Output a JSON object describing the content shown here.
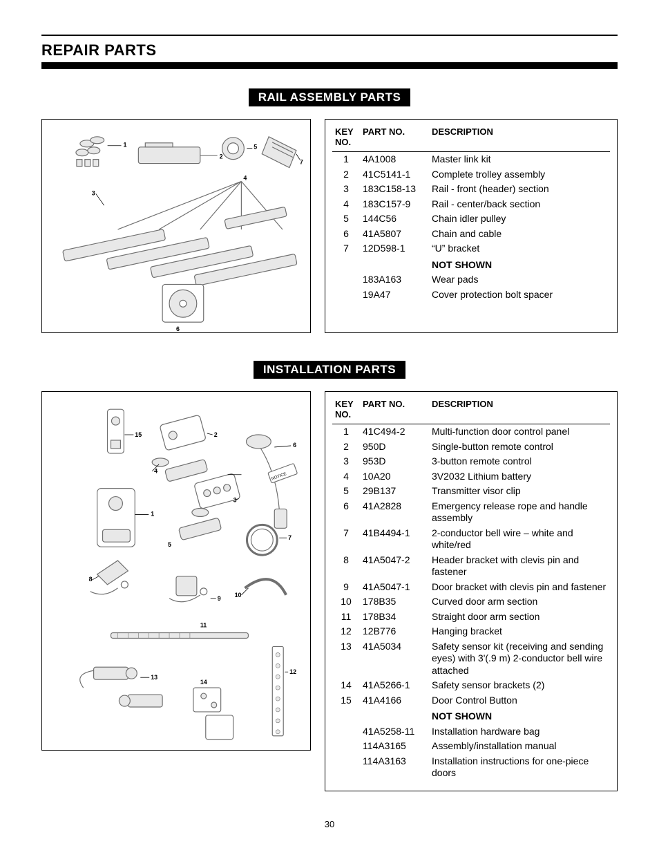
{
  "page_title": "REPAIR PARTS",
  "page_number": "30",
  "colors": {
    "text": "#000000",
    "bg": "#ffffff",
    "header_bar": "#000000",
    "diagram_stroke": "#707070",
    "diagram_fill": "#d9d9d9"
  },
  "section1": {
    "title": "RAIL ASSEMBLY PARTS",
    "table_headers": {
      "key": "KEY NO.",
      "part": "PART NO.",
      "desc": "DESCRIPTION"
    },
    "callouts": [
      "1",
      "2",
      "3",
      "4",
      "5",
      "6",
      "7"
    ],
    "rows": [
      {
        "key": "1",
        "part": "4A1008",
        "desc": "Master link kit"
      },
      {
        "key": "2",
        "part": "41C5141-1",
        "desc": "Complete trolley assembly"
      },
      {
        "key": "3",
        "part": "183C158-13",
        "desc": "Rail - front (header) section"
      },
      {
        "key": "4",
        "part": "183C157-9",
        "desc": "Rail - center/back section"
      },
      {
        "key": "5",
        "part": "144C56",
        "desc": "Chain idler pulley"
      },
      {
        "key": "6",
        "part": "41A5807",
        "desc": "Chain and cable"
      },
      {
        "key": "7",
        "part": "12D598-1",
        "desc": "“U” bracket"
      }
    ],
    "not_shown_label": "NOT SHOWN",
    "not_shown": [
      {
        "part": "183A163",
        "desc": "Wear pads"
      },
      {
        "part": "19A47",
        "desc": "Cover protection bolt spacer"
      }
    ]
  },
  "section2": {
    "title": "INSTALLATION PARTS",
    "table_headers": {
      "key": "KEY NO.",
      "part": "PART NO.",
      "desc": "DESCRIPTION"
    },
    "callouts": [
      "1",
      "2",
      "3",
      "4",
      "5",
      "6",
      "7",
      "8",
      "9",
      "10",
      "11",
      "12",
      "13",
      "14",
      "15"
    ],
    "rows": [
      {
        "key": "1",
        "part": "41C494-2",
        "desc": "Multi-function door control panel"
      },
      {
        "key": "2",
        "part": "950D",
        "desc": "Single-button remote control"
      },
      {
        "key": "3",
        "part": "953D",
        "desc": "3-button remote control"
      },
      {
        "key": "4",
        "part": "10A20",
        "desc": "3V2032 Lithium battery"
      },
      {
        "key": "5",
        "part": "29B137",
        "desc": "Transmitter visor clip"
      },
      {
        "key": "6",
        "part": "41A2828",
        "desc": "Emergency release rope and handle assembly"
      },
      {
        "key": "7",
        "part": "41B4494-1",
        "desc": "2-conductor bell wire – white and white/red"
      },
      {
        "key": "8",
        "part": "41A5047-2",
        "desc": "Header bracket with clevis pin and fastener"
      },
      {
        "key": "9",
        "part": "41A5047-1",
        "desc": "Door bracket with clevis pin and fastener"
      },
      {
        "key": "10",
        "part": "178B35",
        "desc": "Curved door arm section"
      },
      {
        "key": "11",
        "part": "178B34",
        "desc": "Straight door arm section"
      },
      {
        "key": "12",
        "part": "12B776",
        "desc": "Hanging bracket"
      },
      {
        "key": "13",
        "part": "41A5034",
        "desc": "Safety sensor kit (receiving and sending eyes) with 3'(.9 m) 2-conductor bell wire attached"
      },
      {
        "key": "14",
        "part": "41A5266-1",
        "desc": "Safety sensor brackets (2)"
      },
      {
        "key": "15",
        "part": "41A4166",
        "desc": "Door Control Button"
      }
    ],
    "not_shown_label": "NOT SHOWN",
    "not_shown": [
      {
        "part": "41A5258-11",
        "desc": "Installation hardware bag"
      },
      {
        "part": "114A3165",
        "desc": "Assembly/installation manual"
      },
      {
        "part": "114A3163",
        "desc": "Installation instructions for one-piece doors"
      }
    ]
  }
}
